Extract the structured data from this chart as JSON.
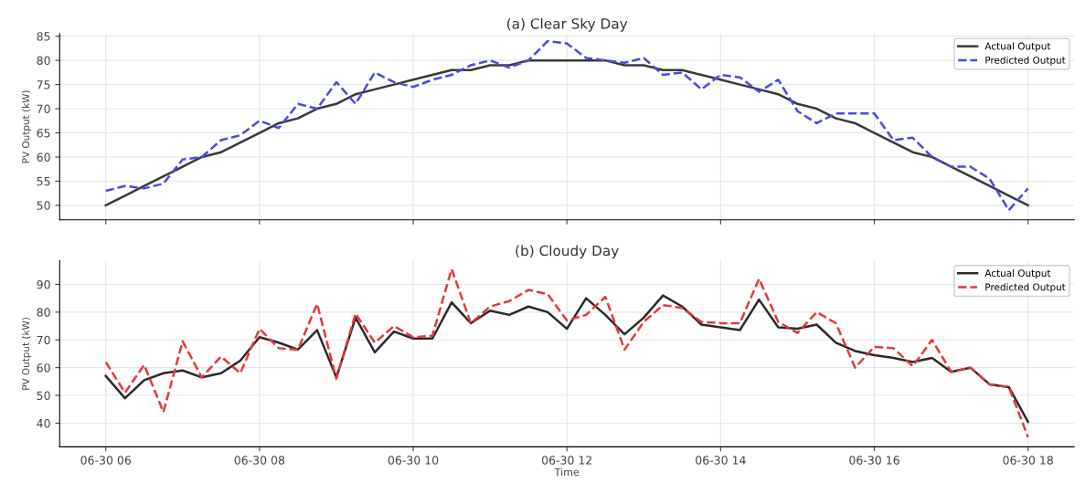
{
  "chart_data": [
    {
      "type": "line",
      "title": "(a) Clear Sky Day",
      "ylabel": "PV Output (kW)",
      "categories": [
        null,
        null,
        null,
        null,
        null,
        null,
        null,
        null,
        null,
        null,
        null,
        null,
        null,
        null,
        null,
        null,
        null,
        null,
        null,
        null,
        null,
        null,
        null,
        null,
        null,
        null,
        null,
        null,
        null,
        null,
        null,
        null,
        null,
        null,
        null,
        null,
        null,
        null,
        null,
        null,
        null,
        null,
        null,
        null,
        null,
        null,
        null,
        null,
        null
      ],
      "series": [
        {
          "name": "Actual Output",
          "color": "#3a3a3a",
          "line_style": "solid",
          "values": [
            50,
            52,
            54,
            56,
            58,
            60,
            61,
            63,
            65,
            67,
            68,
            70,
            71,
            73,
            74,
            75,
            76,
            77,
            78,
            78,
            79,
            79,
            80,
            80,
            80,
            80,
            80,
            79,
            79,
            78,
            78,
            77,
            76,
            75,
            74,
            73,
            71,
            70,
            68,
            67,
            65,
            63,
            61,
            60,
            58,
            56,
            54,
            52,
            50
          ]
        },
        {
          "name": "Predicted Output",
          "color": "#4b4be6",
          "line_style": "dashed",
          "values": [
            53,
            54,
            53.5,
            54.5,
            59.5,
            60,
            63.5,
            64.5,
            67.5,
            66,
            71,
            70,
            75.5,
            71,
            77.5,
            75.5,
            74.5,
            76,
            77,
            79,
            80,
            78.5,
            80,
            84,
            83.5,
            80.5,
            80,
            79.5,
            80.5,
            77,
            77.5,
            74,
            77,
            76.5,
            73.5,
            76,
            69.5,
            67,
            69,
            69,
            69,
            63.5,
            64,
            60,
            58,
            58,
            55.5,
            49,
            53.5
          ]
        }
      ],
      "ylim": [
        47,
        85.5
      ],
      "yticks": [
        50,
        55,
        60,
        65,
        70,
        75,
        80,
        85
      ],
      "grid": true,
      "legend": "top right",
      "tick_labels": "y"
    },
    {
      "type": "line",
      "title": "(b) Cloudy Day",
      "ylabel": "PV Output (kW)",
      "xlabel": "Time",
      "categories": [
        "06-30 06",
        null,
        null,
        null,
        null,
        null,
        null,
        null,
        "06-30 08",
        null,
        null,
        null,
        null,
        null,
        null,
        null,
        "06-30 10",
        null,
        null,
        null,
        null,
        null,
        null,
        null,
        "06-30 12",
        null,
        null,
        null,
        null,
        null,
        null,
        null,
        "06-30 14",
        null,
        null,
        null,
        null,
        null,
        null,
        null,
        "06-30 16",
        null,
        null,
        null,
        null,
        null,
        null,
        null,
        "06-30 18"
      ],
      "series": [
        {
          "name": "Actual Output",
          "color": "#2b2b2b",
          "line_style": "solid",
          "values": [
            57,
            49,
            55.5,
            58,
            59,
            56.5,
            58,
            62.5,
            71,
            69,
            66.5,
            73.5,
            56.5,
            78,
            65.5,
            73,
            70.5,
            70.5,
            83.5,
            76,
            80.5,
            79,
            82,
            80,
            74,
            85,
            79,
            72,
            78,
            86,
            82,
            75.5,
            74.5,
            73.5,
            84.5,
            74.5,
            74,
            75.5,
            69,
            66,
            64.5,
            63.5,
            62,
            63.5,
            58.5,
            60,
            54,
            53,
            40.5
          ]
        },
        {
          "name": "Predicted Output",
          "color": "#e8383b",
          "line_style": "dashed",
          "values": [
            62,
            51,
            61,
            44,
            69.5,
            56.5,
            64,
            58,
            74,
            67,
            66.5,
            83,
            56,
            79.5,
            69,
            75,
            71,
            71.5,
            95.5,
            76,
            82,
            84,
            88,
            86.5,
            77,
            79,
            85.5,
            66.5,
            76.5,
            82.5,
            81.5,
            76.5,
            76,
            76,
            92,
            76.5,
            72.5,
            80,
            76,
            60,
            67.5,
            67,
            60.5,
            70,
            58.5,
            60,
            54,
            53,
            35
          ]
        }
      ],
      "ylim": [
        31.5,
        98.5
      ],
      "yticks": [
        40,
        50,
        60,
        70,
        80,
        90
      ],
      "grid": true,
      "legend": "top right"
    }
  ]
}
